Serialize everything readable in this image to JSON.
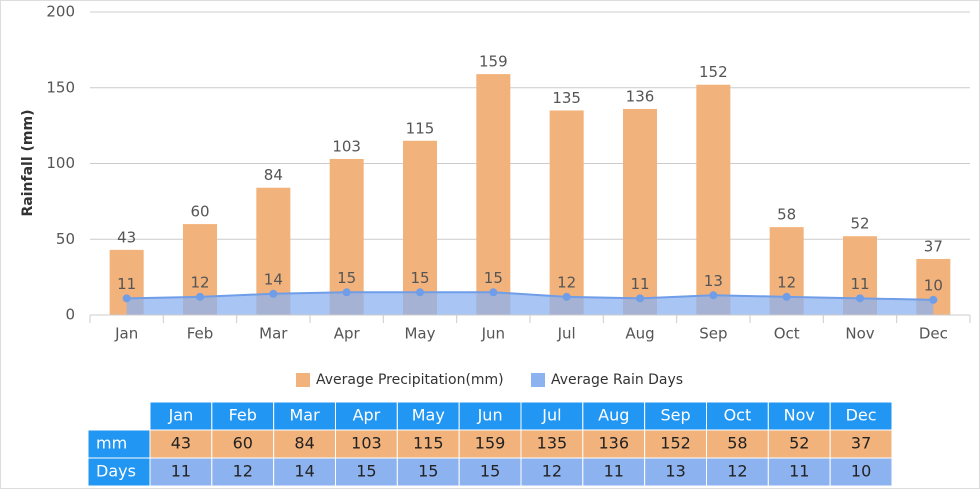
{
  "chart_data": {
    "type": "bar",
    "y_label": "Rainfall (mm)",
    "categories": [
      "Jan",
      "Feb",
      "Mar",
      "Apr",
      "May",
      "Jun",
      "Jul",
      "Aug",
      "Sep",
      "Oct",
      "Nov",
      "Dec"
    ],
    "series": [
      {
        "name": "Average Precipitation(mm)",
        "type": "bar",
        "color": "#f2b27b",
        "values": [
          43,
          60,
          84,
          103,
          115,
          159,
          135,
          136,
          152,
          58,
          52,
          37
        ]
      },
      {
        "name": "Average Rain Days",
        "type": "area",
        "color": "#8cb2f0",
        "values": [
          11,
          12,
          14,
          15,
          15,
          15,
          12,
          11,
          13,
          12,
          11,
          10
        ]
      }
    ],
    "ylim": [
      0,
      200
    ],
    "yticks": [
      0,
      50,
      100,
      150,
      200
    ],
    "grid": true
  },
  "table": {
    "row_labels": [
      "mm",
      "Days"
    ]
  }
}
